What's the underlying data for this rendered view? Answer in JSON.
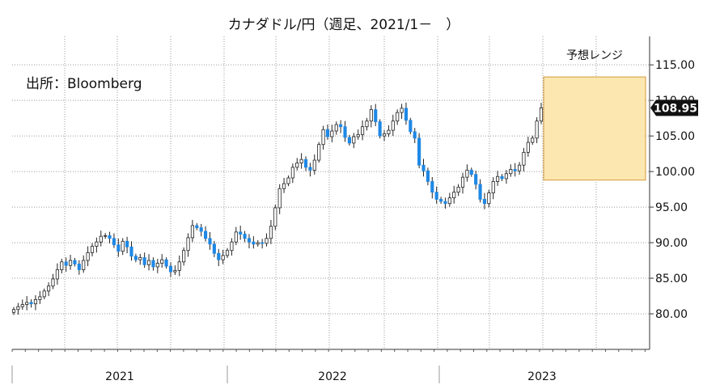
{
  "chart_data": {
    "type": "candlestick",
    "title": "カナダドル/円（週足、2021/1－　）",
    "source_note": "出所：Bloomberg",
    "ylim": [
      75,
      119
    ],
    "y_ticks": [
      "80.00",
      "85.00",
      "90.00",
      "95.00",
      "100.00",
      "105.00",
      "110.00",
      "115.00"
    ],
    "x_year_labels": [
      "2021",
      "2022",
      "2023"
    ],
    "grid": true,
    "up_color": "#ffffff",
    "down_color": "#1e88e5",
    "last_price": "108.95",
    "forecast_range": {
      "label": "予想レンジ",
      "low": 98.8,
      "high": 113.3,
      "fill": "#fce7b0",
      "border": "#d39a3b"
    },
    "weekly_close": [
      80.6,
      81.0,
      81.3,
      81.6,
      81.4,
      82.0,
      82.4,
      83.2,
      83.9,
      84.9,
      86.2,
      87.3,
      86.8,
      87.5,
      87.0,
      86.2,
      87.5,
      88.6,
      89.5,
      90.1,
      90.9,
      91.0,
      90.6,
      89.7,
      88.8,
      90.2,
      89.4,
      88.1,
      87.6,
      87.9,
      86.9,
      87.5,
      86.6,
      87.1,
      87.6,
      86.7,
      85.9,
      86.1,
      87.3,
      88.9,
      90.7,
      92.4,
      92.1,
      91.6,
      90.6,
      89.8,
      88.5,
      87.6,
      88.2,
      88.9,
      90.1,
      91.5,
      91.2,
      90.6,
      90.1,
      89.8,
      90.0,
      89.9,
      90.6,
      92.3,
      94.9,
      97.6,
      98.3,
      99.1,
      100.6,
      101.2,
      101.7,
      100.6,
      100.2,
      101.6,
      103.8,
      105.9,
      104.9,
      105.7,
      106.6,
      106.3,
      104.8,
      104.0,
      104.9,
      105.2,
      106.3,
      107.1,
      108.7,
      107.0,
      105.0,
      105.3,
      105.8,
      107.1,
      108.3,
      108.9,
      107.2,
      105.6,
      104.7,
      100.9,
      100.1,
      98.6,
      97.1,
      96.1,
      95.8,
      95.5,
      96.3,
      97.1,
      97.8,
      99.2,
      100.2,
      99.6,
      98.2,
      96.1,
      95.5,
      97.0,
      98.6,
      99.3,
      99.0,
      99.7,
      100.3,
      100.1,
      100.9,
      102.7,
      104.1,
      104.7,
      107.1,
      108.95
    ]
  }
}
